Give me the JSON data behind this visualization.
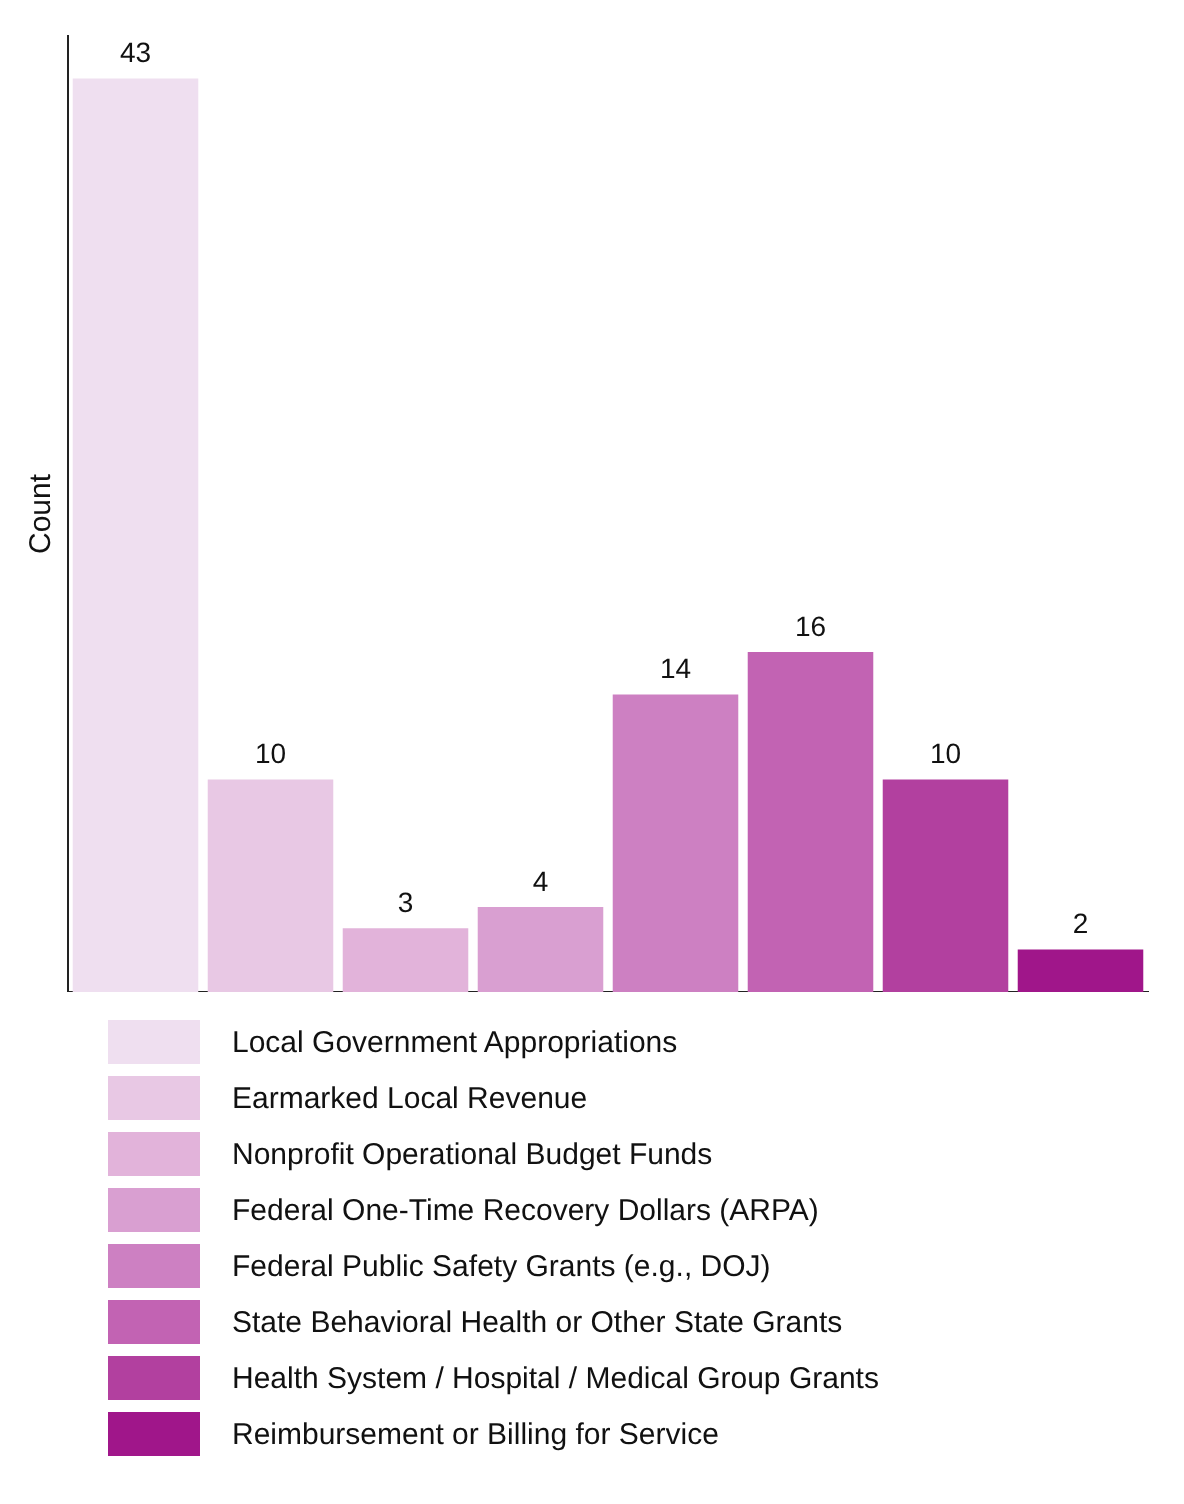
{
  "chart_data": {
    "type": "bar",
    "ylabel": "Count",
    "stacked": true,
    "categories": [
      null,
      null,
      null,
      null,
      null,
      null,
      null,
      null
    ],
    "series": [
      {
        "name": "Local Government Appropriations",
        "color": "#efdff0",
        "values": [
          43,
          null,
          null,
          null,
          null,
          null,
          null,
          null
        ]
      },
      {
        "name": "Earmarked Local Revenue",
        "color": "#e8c8e4",
        "values": [
          null,
          10,
          null,
          null,
          null,
          null,
          null,
          null
        ]
      },
      {
        "name": "Nonprofit Operational Budget Funds",
        "color": "#e2b3da",
        "values": [
          null,
          null,
          3,
          null,
          null,
          null,
          null,
          null
        ]
      },
      {
        "name": "Federal One-Time Recovery Dollars (ARPA)",
        "color": "#d99fd1",
        "values": [
          null,
          null,
          null,
          4,
          null,
          null,
          null,
          null
        ]
      },
      {
        "name": "Federal Public Safety Grants (e.g., DOJ)",
        "color": "#cd80c2",
        "values": [
          null,
          null,
          null,
          null,
          14,
          null,
          null,
          null
        ]
      },
      {
        "name": "State Behavioral Health or Other State Grants",
        "color": "#c263b3",
        "values": [
          null,
          null,
          null,
          null,
          null,
          16,
          null,
          null
        ]
      },
      {
        "name": "Health System / Hospital / Medical Group Grants",
        "color": "#b2409f",
        "values": [
          null,
          null,
          null,
          null,
          null,
          null,
          10,
          null
        ]
      },
      {
        "name": "Reimbursement or Billing for Service",
        "color": "#a0168a",
        "values": [
          null,
          null,
          null,
          null,
          null,
          null,
          null,
          2
        ]
      }
    ],
    "tick_labels": false,
    "legend": "bottom",
    "data_labels": true
  }
}
